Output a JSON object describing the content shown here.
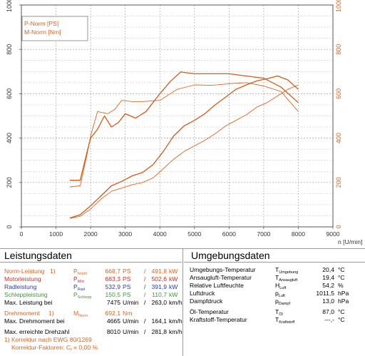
{
  "chart_data": {
    "type": "line",
    "x_axis": {
      "label": "n [U/min]",
      "min": 0,
      "max": 9000,
      "ticks": [
        0,
        1000,
        2000,
        3000,
        4000,
        5000,
        6000,
        7000,
        8000,
        9000
      ]
    },
    "y_axis_left": {
      "min": 0,
      "max": 1000,
      "ticks": [
        0,
        200,
        400,
        600,
        800,
        1000
      ]
    },
    "y_axis_right": {
      "min": 0,
      "max": 1000,
      "ticks": [
        0,
        200,
        400,
        600,
        800,
        1000
      ]
    },
    "legend": [
      "P-Norm [PS]",
      "M-Norm [Nm]"
    ],
    "legend_placement": "top-left",
    "grid": true,
    "series": [
      {
        "name": "P-Norm [PS]",
        "color": "#e0641e",
        "x": [
          1400,
          1700,
          2000,
          2300,
          2600,
          2900,
          3200,
          3500,
          3800,
          4100,
          4400,
          4700,
          5000,
          5300,
          5600,
          5900,
          6200,
          6500,
          6800,
          7100,
          7400,
          7700,
          8000
        ],
        "y": [
          38,
          48,
          80,
          125,
          160,
          175,
          190,
          200,
          220,
          262,
          305,
          340,
          365,
          390,
          420,
          455,
          480,
          505,
          540,
          560,
          590,
          620,
          640
        ]
      },
      {
        "name": "P-Norm [PS]",
        "color": "#d45a1a",
        "x": [
          1400,
          1700,
          2000,
          2300,
          2600,
          2900,
          3200,
          3500,
          3800,
          4100,
          4400,
          4700,
          5000,
          5300,
          5600,
          5900,
          6200,
          6500,
          6800,
          7100,
          7400,
          7700,
          8000
        ],
        "y": [
          40,
          55,
          95,
          140,
          185,
          205,
          230,
          245,
          280,
          340,
          410,
          455,
          480,
          510,
          550,
          585,
          620,
          640,
          658,
          668,
          680,
          662,
          620
        ]
      },
      {
        "name": "M-Norm [Nm]",
        "color": "#e0641e",
        "x": [
          1400,
          1700,
          1900,
          2000,
          2200,
          2500,
          2700,
          2900,
          3200,
          3500,
          4000,
          4500,
          5000,
          5500,
          6000,
          6500,
          7000,
          7500,
          8000
        ],
        "y": [
          180,
          185,
          330,
          410,
          520,
          510,
          530,
          570,
          565,
          565,
          570,
          620,
          640,
          638,
          645,
          650,
          635,
          610,
          520
        ]
      },
      {
        "name": "M-Norm [Nm]",
        "color": "#d45a1a",
        "x": [
          1400,
          1700,
          1900,
          2000,
          2200,
          2400,
          2600,
          2800,
          3000,
          3300,
          3600,
          4000,
          4300,
          4600,
          5000,
          5500,
          6000,
          6500,
          7000,
          7500,
          8000
        ],
        "y": [
          210,
          210,
          340,
          400,
          440,
          500,
          450,
          470,
          510,
          490,
          520,
          600,
          655,
          698,
          690,
          690,
          690,
          680,
          670,
          630,
          560
        ]
      }
    ]
  },
  "results": {
    "title": "Leistungsdaten",
    "rows": [
      {
        "label": "Norm-Leistung",
        "mark": "1)",
        "sym": "P",
        "sub": "Norm",
        "v1": "668,7",
        "u1": "PS",
        "sep": "/",
        "v2": "491,8",
        "u2": "kW",
        "color": "orange"
      },
      {
        "label": "Motorleistung",
        "mark": "",
        "sym": "P",
        "sub": "Mot",
        "v1": "683,3",
        "u1": "PS",
        "sep": "/",
        "v2": "502,6",
        "u2": "kW",
        "color": "red"
      },
      {
        "label": "Radleistung",
        "mark": "",
        "sym": "P",
        "sub": "Rad",
        "v1": "532,9",
        "u1": "PS",
        "sep": "/",
        "v2": "391,9",
        "u2": "kW",
        "color": "blue"
      },
      {
        "label": "Schleppleistung",
        "mark": "",
        "sym": "P",
        "sub": "Schlepp",
        "v1": "150,5",
        "u1": "PS",
        "sep": "/",
        "v2": "110,7",
        "u2": "kW",
        "color": "green"
      },
      {
        "label": "Max. Leistung bei",
        "mark": "",
        "sym": "",
        "sub": "",
        "v1": "7475",
        "u1": "U/min",
        "sep": "/",
        "v2": "263,0",
        "u2": "km/h",
        "color": ""
      },
      {
        "label": "Drehmoment",
        "mark": "1)",
        "sym": "M",
        "sub": "Norm",
        "v1": "692,1",
        "u1": "Nm",
        "sep": "",
        "v2": "",
        "u2": "",
        "color": "orange"
      },
      {
        "label": "Max. Drehmoment bei",
        "mark": "",
        "sym": "",
        "sub": "",
        "v1": "4665",
        "u1": "U/min",
        "sep": "/",
        "v2": "164,1",
        "u2": "km/h",
        "color": ""
      },
      {
        "label": "Max. erreichte Drehzahl",
        "mark": "",
        "sym": "",
        "sub": "",
        "v1": "8010",
        "u1": "U/min",
        "sep": "/",
        "v2": "281,8",
        "u2": "km/h",
        "color": ""
      }
    ],
    "footnote1": "1) Korrektur nach EWG 80/1269",
    "footnote2_label": "Korrektur-Faktoren: C",
    "footnote2_sub": "f",
    "footnote2_value": "=    0,00 %"
  },
  "environment": {
    "title": "Umgebungsdaten",
    "rows": [
      {
        "label": "Umgebungs-Temperatur",
        "sym": "T",
        "sub": "Umgebung",
        "value": "20,4",
        "unit": "°C"
      },
      {
        "label": "Ansaugluft-Temperatur",
        "sym": "T",
        "sub": "Ansaugluft",
        "value": "19,4",
        "unit": "°C"
      },
      {
        "label": "Relative Luftfeuchte",
        "sym": "H",
        "sub": "Luft",
        "value": "54,2",
        "unit": "%"
      },
      {
        "label": "Luftdruck",
        "sym": "p",
        "sub": "Luft",
        "value": "1011,5",
        "unit": "hPa"
      },
      {
        "label": "Dampfdruck",
        "sym": "p",
        "sub": "Dampf",
        "value": "13,0",
        "unit": "hPa"
      },
      {
        "label": "Öl-Temperatur",
        "sym": "T",
        "sub": "Öl",
        "value": "87,0",
        "unit": "°C"
      },
      {
        "label": "Kraftstoff-Temperatur",
        "sym": "T",
        "sub": "Kraftstoff",
        "value": "---,-",
        "unit": "°C"
      }
    ]
  },
  "colors": {
    "axis_left": "#333333",
    "axis_right": "#e0641e",
    "grid": "#9a9a9a",
    "accent": "#e0641e"
  }
}
